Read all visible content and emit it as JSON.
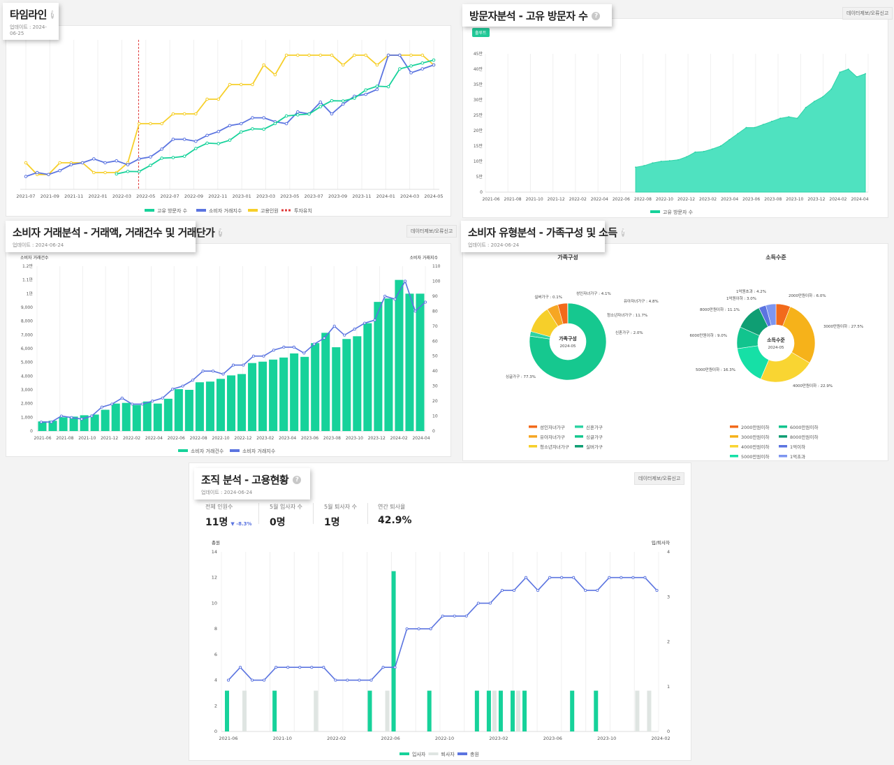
{
  "colors": {
    "green": "#16d29a",
    "blue": "#5b74e0",
    "yellow": "#f6cf2a",
    "red": "#e03c3c",
    "grey": "#dfe5e2",
    "area": "#4fe2c0"
  },
  "report_label": "데이터제보/오류신고",
  "timeline": {
    "title": "타임라인",
    "updated": "업데이트 : 2024-06-25",
    "chart_data": {
      "type": "line",
      "x_labels": [
        "2021-07",
        "2021-09",
        "2021-11",
        "2022-01",
        "2022-03",
        "2022-05",
        "2022-07",
        "2022-09",
        "2022-11",
        "2023-01",
        "2023-03",
        "2023-05",
        "2023-07",
        "2023-09",
        "2023-11",
        "2024-01",
        "2024-03",
        "2024-05"
      ],
      "yellow_values": [
        20,
        8,
        8,
        20,
        20,
        20,
        10,
        10,
        10,
        20,
        60,
        60,
        60,
        70,
        70,
        70,
        85,
        85,
        100,
        100,
        100,
        120,
        110,
        130,
        130,
        130,
        130,
        130,
        120,
        130,
        130,
        120,
        130,
        130,
        130,
        130,
        120
      ],
      "blue_values": [
        6,
        10,
        8,
        12,
        18,
        20,
        24,
        20,
        22,
        18,
        24,
        26,
        34,
        44,
        44,
        42,
        48,
        52,
        58,
        60,
        66,
        66,
        62,
        60,
        72,
        70,
        82,
        70,
        80,
        88,
        90,
        95,
        130,
        130,
        112,
        116,
        120
      ],
      "green_values": [
        null,
        null,
        null,
        null,
        null,
        null,
        null,
        null,
        null,
        null,
        null,
        null,
        null,
        null,
        null,
        null,
        null,
        null,
        null,
        null,
        null,
        null,
        null,
        null,
        null,
        null,
        null,
        null,
        null,
        null,
        null,
        null,
        null,
        null,
        null,
        null,
        null
      ],
      "series": [
        {
          "name": "고유 방문자 수",
          "color": "#16d29a"
        },
        {
          "name": "소비자 거래지수",
          "color": "#5b74e0"
        },
        {
          "name": "고용인원",
          "color": "#f6cf2a"
        },
        {
          "name": "투자유치",
          "color": "#e03c3c"
        }
      ],
      "event_x": "2022-03"
    }
  },
  "visitors": {
    "title": "방문자분석 - 고유 방문자 수",
    "chip": "출루트",
    "chart_data": {
      "type": "area",
      "x_labels": [
        "2021-06",
        "2021-08",
        "2021-10",
        "2021-12",
        "2022-02",
        "2022-04",
        "2022-06",
        "2022-08",
        "2022-10",
        "2022-12",
        "2023-02",
        "2023-04",
        "2023-06",
        "2023-08",
        "2023-10",
        "2023-12",
        "2024-02",
        "2024-04"
      ],
      "y_ticks": [
        "0",
        "5만",
        "10만",
        "15만",
        "20만",
        "25만",
        "30만",
        "35만",
        "40만",
        "45만"
      ],
      "ylim": [
        0,
        45
      ],
      "values": [
        null,
        null,
        null,
        null,
        null,
        null,
        null,
        null,
        null,
        null,
        null,
        null,
        null,
        null,
        null,
        null,
        null,
        8.1,
        8.6,
        9.5,
        10,
        10.2,
        10.5,
        11.5,
        13,
        13.2,
        14,
        15,
        17,
        19,
        21,
        21,
        22,
        23,
        24,
        24.5,
        24,
        27.5,
        29.5,
        31,
        33.5,
        39,
        40,
        37.5,
        38.5
      ],
      "series": [
        {
          "name": "고유 방문자 수"
        }
      ]
    }
  },
  "transactions": {
    "title": "소비자 거래분석 - 거래액, 거래건수 및 거래단가",
    "updated": "업데이트 : 2024-06-24",
    "chart_data": {
      "type": "bar",
      "left_axis_title": "소비자 거래건수",
      "right_axis_title": "소비자 거래지수",
      "x_labels": [
        "2021-06",
        "2021-08",
        "2021-10",
        "2021-12",
        "2022-02",
        "2022-04",
        "2022-06",
        "2022-08",
        "2022-10",
        "2022-12",
        "2023-02",
        "2023-04",
        "2023-06",
        "2023-08",
        "2023-10",
        "2023-12",
        "2024-02",
        "2024-04"
      ],
      "y_left_ticks": [
        "0",
        "1,000",
        "2,000",
        "3,000",
        "4,000",
        "5,000",
        "6,000",
        "7,000",
        "8,000",
        "9,000",
        "1만",
        "1.1만",
        "1.2만"
      ],
      "y_right_ticks": [
        "0",
        "10",
        "20",
        "30",
        "40",
        "50",
        "60",
        "70",
        "80",
        "90",
        "100",
        "110"
      ],
      "bar_values": [
        700,
        750,
        1000,
        1050,
        1150,
        1200,
        1550,
        2000,
        2050,
        1900,
        2150,
        2000,
        2350,
        3050,
        3000,
        3550,
        3600,
        3800,
        4050,
        4150,
        4950,
        5050,
        5200,
        5350,
        5650,
        5400,
        6400,
        7150,
        6100,
        6700,
        6900,
        7850,
        9400,
        9650,
        11000,
        10000,
        10000
      ],
      "line_values": [
        6,
        6,
        10,
        9,
        8,
        10,
        16,
        18,
        22,
        18,
        18,
        20,
        22,
        28,
        30,
        34,
        40,
        40,
        38,
        44,
        44,
        50,
        50,
        54,
        56,
        56,
        52,
        58,
        62,
        70,
        64,
        68,
        72,
        74,
        90,
        88,
        100,
        80,
        86
      ],
      "series": [
        {
          "name": "소비자 거래건수"
        },
        {
          "name": "소비자 거래지수"
        }
      ]
    }
  },
  "household": {
    "title": "소비자 유형분석 - 가족구성 및 소득",
    "updated": "업데이트 : 2024-06-24",
    "family": {
      "heading": "가족구성",
      "center_title": "가족구성",
      "center_sub": "2024-05",
      "chart_data": {
        "type": "pie",
        "slices": [
          {
            "label": "싱글가구",
            "value": 77.3,
            "display": "싱글가구 : 77.3%",
            "color": "#16c88f"
          },
          {
            "label": "신혼가구",
            "value": 2.0,
            "display": "신혼가구 : 2.0%",
            "color": "#2ed3a3"
          },
          {
            "label": "청소년자녀가구",
            "value": 11.7,
            "display": "청소년자녀가구 : 11.7%",
            "color": "#f6cf2a"
          },
          {
            "label": "유아자녀가구",
            "value": 4.8,
            "display": "유아자녀가구 : 4.8%",
            "color": "#f6a623"
          },
          {
            "label": "성인자녀가구",
            "value": 4.1,
            "display": "성인자녀가구 : 4.1%",
            "color": "#f26a1b"
          },
          {
            "label": "실버가구",
            "value": 0.1,
            "display": "실버가구 : 0.1%",
            "color": "#0f9e73"
          }
        ],
        "legend": [
          "성인자녀가구",
          "신혼가구",
          "유아자녀가구",
          "싱글가구",
          "청소년자녀가구",
          "실버가구"
        ]
      }
    },
    "income": {
      "heading": "소득수준",
      "center_title": "소득수준",
      "center_sub": "2024-05",
      "chart_data": {
        "type": "pie",
        "slices": [
          {
            "label": "2000만원이하",
            "value": 6.0,
            "display": "2000만원이하 : 6.0%",
            "color": "#f26a1b"
          },
          {
            "label": "3000만원이하",
            "value": 27.5,
            "display": "3000만원이하 : 27.5%",
            "color": "#f6b21a"
          },
          {
            "label": "4000만원이하",
            "value": 22.9,
            "display": "4000만원이하 : 22.9%",
            "color": "#f9d532"
          },
          {
            "label": "5000만원이하",
            "value": 16.3,
            "display": "5000만원이하 : 16.3%",
            "color": "#16e0a6"
          },
          {
            "label": "6000만원이하",
            "value": 9.0,
            "display": "6000만원이하 : 9.0%",
            "color": "#12c48e"
          },
          {
            "label": "8000만원이하",
            "value": 11.1,
            "display": "8000만원이하 : 11.1%",
            "color": "#0f9e73"
          },
          {
            "label": "1억원이하",
            "value": 3.0,
            "display": "1억원이하 : 3.0%",
            "color": "#5b74e0"
          },
          {
            "label": "1억원초과",
            "value": 4.2,
            "display": "1억원초과 : 4.2%",
            "color": "#7e96f0"
          }
        ],
        "legend": [
          "2000만원이하",
          "6000만원이하",
          "3000만원이하",
          "8000만원이하",
          "4000만원이하",
          "1억이하",
          "5000만원이하",
          "1억초과"
        ]
      }
    }
  },
  "employment": {
    "title": "조직 분석 - 고용현황",
    "updated": "업데이트 : 2024-06-24",
    "kpis": [
      {
        "label": "전체 인원수",
        "value": "11명",
        "delta": "▼ -8.3%"
      },
      {
        "label": "5월 입사자 수",
        "value": "0명",
        "delta": ""
      },
      {
        "label": "5월 퇴사자 수",
        "value": "1명",
        "delta": ""
      },
      {
        "label": "연간 퇴사율",
        "value": "42.9%",
        "delta": ""
      }
    ],
    "chart_data": {
      "type": "bar",
      "left_axis_title": "총원",
      "right_axis_title": "입/퇴사자",
      "x_labels": [
        "2021-06",
        "2021-10",
        "2022-02",
        "2022-06",
        "2022-10",
        "2023-02",
        "2023-06",
        "2023-10",
        "2024-02"
      ],
      "y_left_ticks": [
        "0",
        "2",
        "4",
        "6",
        "8",
        "10",
        "12",
        "14"
      ],
      "y_right_ticks": [
        "0",
        "1",
        "2",
        "3",
        "4"
      ],
      "total_values": [
        4,
        5,
        4,
        4,
        5,
        5,
        5,
        5,
        5,
        4,
        4,
        4,
        4,
        5,
        5,
        8,
        8,
        8,
        9,
        9,
        9,
        10,
        10,
        11,
        11,
        12,
        11,
        12,
        12,
        12,
        11,
        11,
        12,
        12,
        12,
        12,
        11
      ],
      "hires": [
        1,
        0,
        0,
        0,
        1,
        0,
        0,
        0,
        0,
        0,
        0,
        0,
        1,
        0,
        4,
        0,
        0,
        1,
        0,
        0,
        0,
        1,
        1,
        1,
        1,
        1,
        0,
        0,
        0,
        1,
        0,
        1,
        0,
        0,
        0,
        0,
        0
      ],
      "leavers": [
        0,
        1,
        0,
        0,
        0,
        0,
        0,
        1,
        0,
        0,
        0,
        0,
        0,
        1,
        0,
        0,
        0,
        0,
        0,
        0,
        0,
        0,
        1,
        0,
        1,
        0,
        0,
        0,
        0,
        0,
        0,
        0,
        0,
        0,
        1,
        1,
        0
      ],
      "series": [
        {
          "name": "입사자"
        },
        {
          "name": "퇴사자"
        },
        {
          "name": "총원"
        }
      ]
    }
  }
}
